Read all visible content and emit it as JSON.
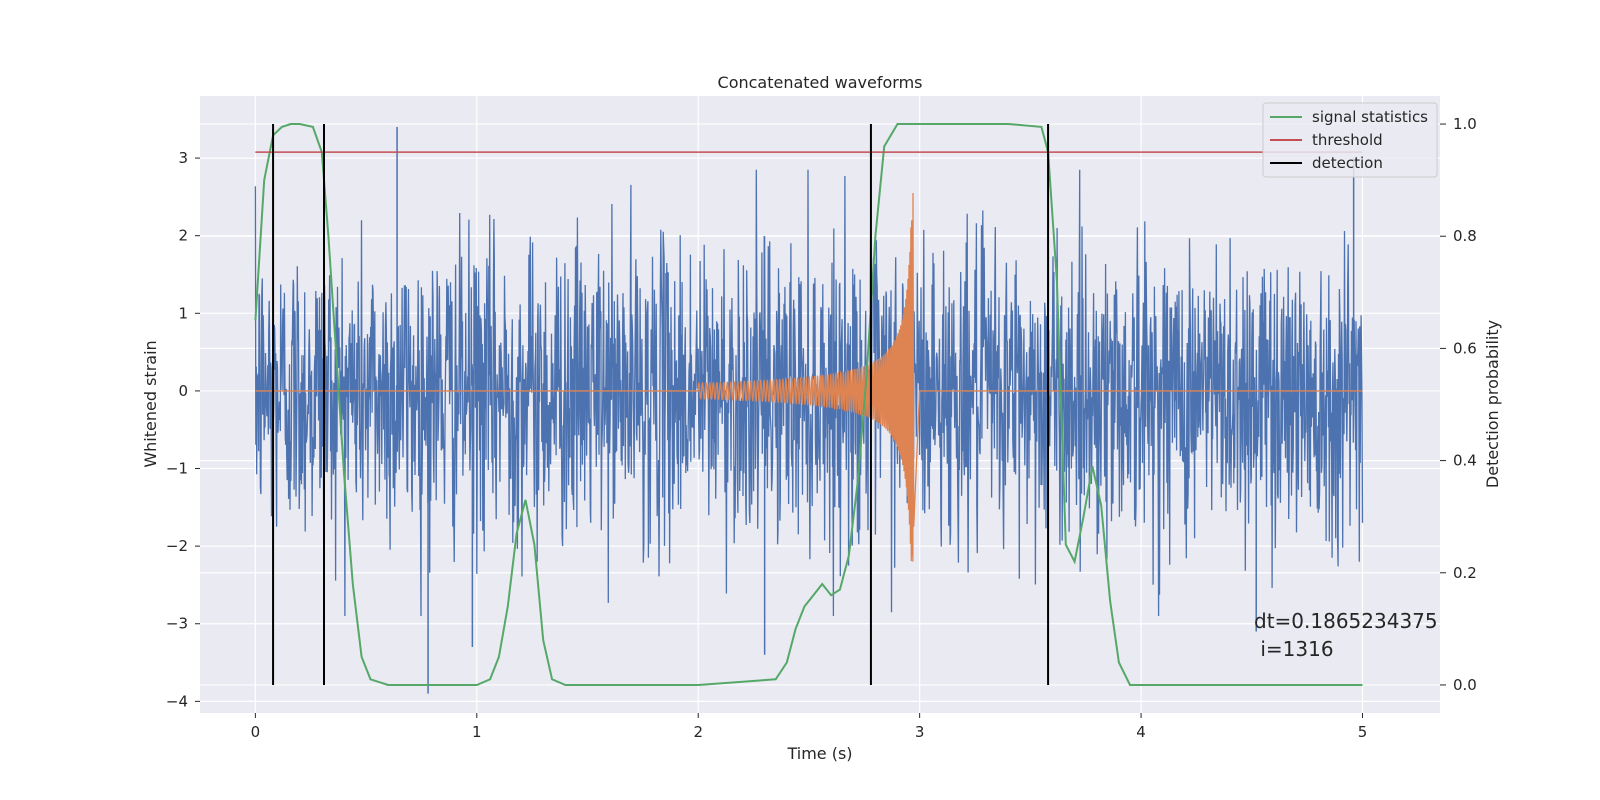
{
  "chart_data": {
    "type": "line",
    "title": "Concatenated waveforms",
    "xlabel": "Time (s)",
    "ylabel": "Whitened strain",
    "y2label": "Detection probability",
    "xlim": [
      -0.25,
      5.35
    ],
    "ylim": [
      -4.15,
      3.8
    ],
    "y2lim": [
      -0.05,
      1.05
    ],
    "xticks": [
      0,
      1,
      2,
      3,
      4,
      5
    ],
    "yticks": [
      -4,
      -3,
      -2,
      -1,
      0,
      1,
      2,
      3
    ],
    "y2ticks": [
      0.0,
      0.2,
      0.4,
      0.6,
      0.8,
      1.0
    ],
    "grid": true,
    "legend_position": "top-right",
    "series": [
      {
        "name": "",
        "role": "noisy strain (left axis)",
        "color": "#4c72b0",
        "x_range": [
          0,
          5
        ],
        "typical_amplitude": 1.0,
        "extreme_points": [
          {
            "x": 0.64,
            "y": 3.4
          },
          {
            "x": 0.78,
            "y": -3.9
          },
          {
            "x": 0.98,
            "y": -3.3
          },
          {
            "x": 2.3,
            "y": -3.4
          },
          {
            "x": 4.52,
            "y": -3.1
          },
          {
            "x": 4.96,
            "y": 3.0
          }
        ]
      },
      {
        "name": "",
        "role": "injected chirp (left axis)",
        "color": "#dd8452",
        "x_range": [
          2.0,
          3.0
        ],
        "start_amplitude": 0.1,
        "peak_x": 2.97,
        "peak_values": [
          2.55,
          -1.75
        ]
      },
      {
        "name": "signal statistics",
        "axis": "right",
        "color": "#55a868",
        "x": [
          0.0,
          0.04,
          0.08,
          0.12,
          0.16,
          0.2,
          0.26,
          0.3,
          0.33,
          0.36,
          0.4,
          0.44,
          0.48,
          0.52,
          0.6,
          0.8,
          1.0,
          1.06,
          1.1,
          1.14,
          1.18,
          1.22,
          1.26,
          1.3,
          1.34,
          1.4,
          2.0,
          2.35,
          2.4,
          2.44,
          2.48,
          2.52,
          2.56,
          2.6,
          2.64,
          2.68,
          2.72,
          2.76,
          2.8,
          2.84,
          2.9,
          3.0,
          3.4,
          3.55,
          3.58,
          3.62,
          3.66,
          3.7,
          3.74,
          3.78,
          3.82,
          3.86,
          3.9,
          3.95,
          4.2,
          5.0
        ],
        "y": [
          0.65,
          0.9,
          0.98,
          0.995,
          1.0,
          1.0,
          0.995,
          0.95,
          0.8,
          0.62,
          0.38,
          0.18,
          0.05,
          0.01,
          0.0,
          0.0,
          0.0,
          0.01,
          0.05,
          0.14,
          0.27,
          0.33,
          0.25,
          0.08,
          0.01,
          0.0,
          0.0,
          0.01,
          0.04,
          0.1,
          0.14,
          0.16,
          0.18,
          0.16,
          0.17,
          0.23,
          0.36,
          0.55,
          0.8,
          0.96,
          1.0,
          1.0,
          1.0,
          0.995,
          0.95,
          0.72,
          0.25,
          0.22,
          0.3,
          0.39,
          0.32,
          0.15,
          0.04,
          0.0,
          0.0,
          0.0
        ]
      },
      {
        "name": "threshold",
        "axis": "right",
        "color": "#c44e52",
        "x": [
          0,
          5
        ],
        "y": [
          0.95,
          0.95
        ]
      },
      {
        "name": "detection",
        "color": "#000000",
        "type": "vlines",
        "x": [
          0.08,
          0.31,
          2.78,
          3.58
        ],
        "y2_range": [
          0.0,
          1.0
        ]
      }
    ],
    "annotation": {
      "line1": "dt=0.1865234375",
      "line2": " i=1316"
    }
  }
}
